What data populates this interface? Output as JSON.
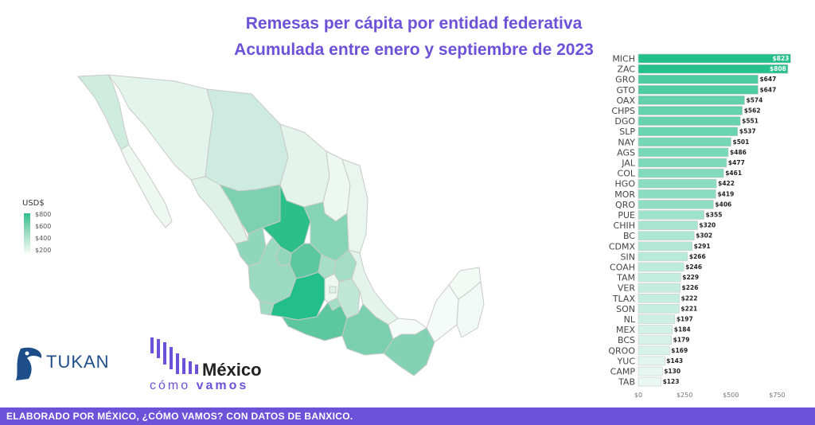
{
  "header": {
    "title": "Remesas per cápita por entidad federativa",
    "subtitle": "Acumulada entre enero y septiembre de 2023"
  },
  "legend": {
    "title": "USD$",
    "labels": [
      "$800",
      "$600",
      "$400",
      "$200"
    ]
  },
  "chart_data": {
    "type": "bar",
    "orientation": "horizontal",
    "categories": [
      "MICH",
      "ZAC",
      "GRO",
      "GTO",
      "OAX",
      "CHPS",
      "DGO",
      "SLP",
      "NAY",
      "AGS",
      "JAL",
      "COL",
      "HGO",
      "MOR",
      "QRO",
      "PUE",
      "CHIH",
      "BC",
      "CDMX",
      "SIN",
      "COAH",
      "TAM",
      "VER",
      "TLAX",
      "SON",
      "NL",
      "MEX",
      "BCS",
      "QROO",
      "YUC",
      "CAMP",
      "TAB"
    ],
    "values": [
      823,
      808,
      647,
      647,
      574,
      562,
      551,
      537,
      501,
      486,
      477,
      461,
      422,
      419,
      406,
      355,
      320,
      302,
      291,
      266,
      246,
      229,
      226,
      222,
      221,
      197,
      184,
      179,
      169,
      143,
      130,
      123
    ],
    "value_labels": [
      "$823",
      "$808",
      "$647",
      "$647",
      "$574",
      "$562",
      "$551",
      "$537",
      "$501",
      "$486",
      "$477",
      "$461",
      "$422",
      "$419",
      "$406",
      "$355",
      "$320",
      "$302",
      "$291",
      "$266",
      "$246",
      "$229",
      "$226",
      "$222",
      "$221",
      "$197",
      "$184",
      "$179",
      "$169",
      "$143",
      "$130",
      "$123"
    ],
    "xticks": [
      "$0",
      "$250",
      "$500",
      "$750"
    ],
    "xtick_values": [
      0,
      250,
      500,
      750
    ],
    "xlim": [
      0,
      860
    ],
    "grid": false,
    "colors": {
      "high": "#22bf8a",
      "low": "#f4fbf8",
      "border": "#c8c8c8"
    }
  },
  "logos": {
    "tukan": "TUKAN",
    "mcv_main": "México",
    "mcv_sub_a": "cómo",
    "mcv_sub_b": "vamos"
  },
  "footer": {
    "text": "ELABORADO POR MÉXICO, ¿CÓMO VAMOS? CON DATOS DE BANXICO."
  }
}
